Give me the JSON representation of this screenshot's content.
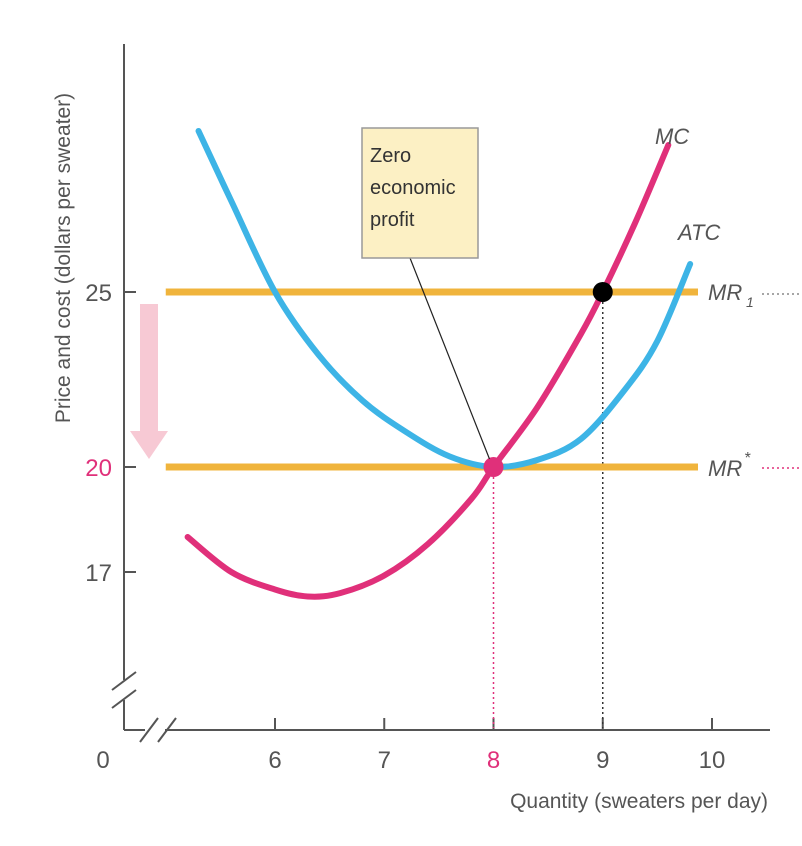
{
  "chart_data": {
    "type": "line",
    "xlabel": "Quantity (sweaters per day)",
    "ylabel": "Price and cost (dollars per sweater)",
    "x_ticks": [
      6,
      7,
      8,
      9,
      10
    ],
    "y_ticks": [
      17,
      20,
      25
    ],
    "origin_label": "0",
    "axis_break": true,
    "series": [
      {
        "name": "MC",
        "color": "#e0307a",
        "x": [
          5.2,
          5.6,
          6.0,
          6.3,
          6.6,
          7.0,
          7.4,
          7.8,
          8.0,
          8.4,
          8.8,
          9.0,
          9.3,
          9.6
        ],
        "y": [
          18.0,
          17.0,
          16.5,
          16.3,
          16.4,
          16.9,
          17.8,
          19.1,
          20.0,
          21.7,
          23.8,
          25.0,
          27.0,
          29.2
        ]
      },
      {
        "name": "ATC",
        "color": "#3db4e6",
        "x": [
          5.3,
          5.6,
          6.0,
          6.4,
          6.8,
          7.2,
          7.6,
          8.0,
          8.4,
          8.8,
          9.2,
          9.5,
          9.8
        ],
        "y": [
          29.6,
          27.6,
          25.0,
          23.2,
          21.9,
          21.0,
          20.3,
          20.0,
          20.2,
          20.8,
          22.2,
          23.6,
          25.8
        ]
      },
      {
        "name": "MR1",
        "color": "#f0b43c",
        "x": [
          5.0,
          10.0
        ],
        "y": [
          25,
          25
        ]
      },
      {
        "name": "MR*",
        "color": "#f0b43c",
        "x": [
          5.0,
          10.0
        ],
        "y": [
          20,
          20
        ]
      }
    ],
    "points": [
      {
        "x": 9,
        "y": 25,
        "color": "#000000"
      },
      {
        "x": 8,
        "y": 20,
        "color": "#e0307a"
      }
    ],
    "curve_labels": {
      "mc": "MC",
      "atc": "ATC",
      "mr1": "MR",
      "mr1_sub": "1",
      "mrstar": "MR",
      "mrstar_sup": "*"
    },
    "annotation": {
      "lines": [
        "Zero",
        "economic",
        "profit"
      ],
      "x": 8,
      "y": 20
    },
    "highlight_color": "#e0307a",
    "arrow": {
      "from": 25,
      "to": 20,
      "color": "#f7c9d4"
    }
  }
}
